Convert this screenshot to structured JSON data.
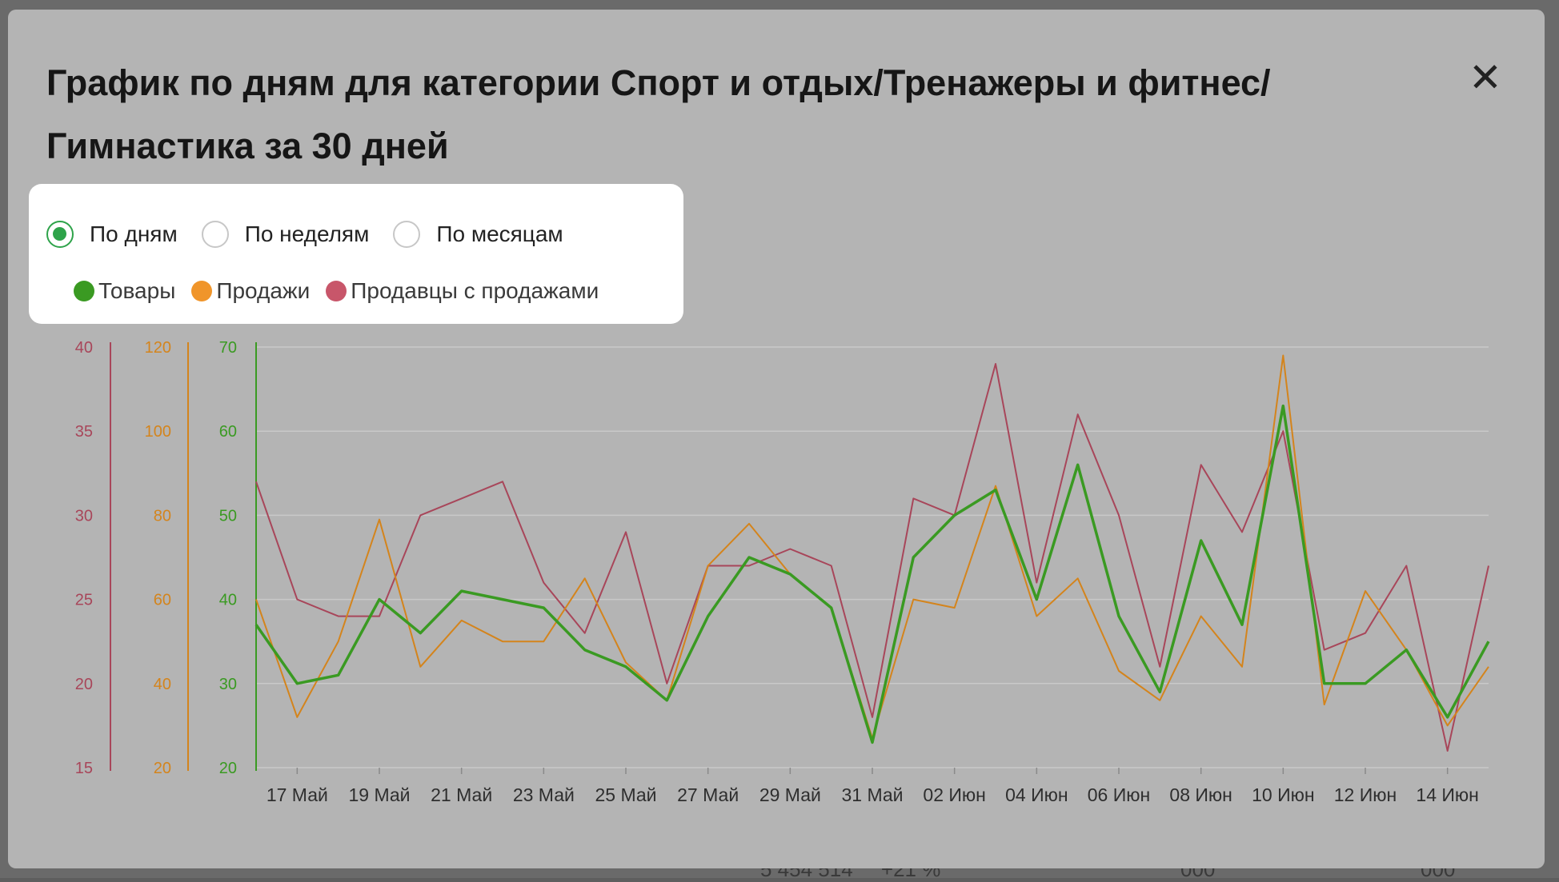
{
  "modal": {
    "title": "График по дням для категории Спорт и отдых/Тренажеры и фитнес/ Гимнастика за 30 дней",
    "close_icon": "close-icon"
  },
  "period_options": [
    {
      "label": "По дням",
      "selected": true
    },
    {
      "label": "По неделям",
      "selected": false
    },
    {
      "label": "По месяцам",
      "selected": false
    }
  ],
  "background": {
    "values": [
      "5 454 514",
      "+21 %",
      "000",
      "000"
    ]
  },
  "colors": {
    "products": "#3a9a22",
    "sales": "#d4841c",
    "sellers": "#a8465a"
  },
  "chart_data": {
    "type": "line",
    "x": [
      "16 Май",
      "17 Май",
      "18 Май",
      "19 Май",
      "20 Май",
      "21 Май",
      "22 Май",
      "23 Май",
      "24 Май",
      "25 Май",
      "26 Май",
      "27 Май",
      "28 Май",
      "29 Май",
      "30 Май",
      "31 Май",
      "01 Июн",
      "02 Июн",
      "03 Июн",
      "04 Июн",
      "05 Июн",
      "06 Июн",
      "07 Июн",
      "08 Июн",
      "09 Июн",
      "10 Июн",
      "11 Июн",
      "12 Июн",
      "13 Июн",
      "14 Июн",
      "15 Июн"
    ],
    "x_tick_labels": [
      "17 Май",
      "19 Май",
      "21 Май",
      "23 Май",
      "25 Май",
      "27 Май",
      "29 Май",
      "31 Май",
      "02 Июн",
      "04 Июн",
      "06 Июн",
      "08 Июн",
      "10 Июн",
      "12 Июн",
      "14 Июн"
    ],
    "axes": [
      {
        "series": "Продавцы с продажами",
        "min": 15,
        "max": 40,
        "ticks": [
          "15",
          "20",
          "25",
          "30",
          "35",
          "40"
        ]
      },
      {
        "series": "Продажи",
        "min": 20,
        "max": 120,
        "ticks": [
          "20",
          "40",
          "60",
          "80",
          "100",
          "120"
        ]
      },
      {
        "series": "Товары",
        "min": 20,
        "max": 70,
        "ticks": [
          "20",
          "30",
          "40",
          "50",
          "60",
          "70"
        ]
      }
    ],
    "grid": true,
    "series": [
      {
        "name": "Товары",
        "color": "#3a9a22",
        "axis": 2,
        "values": [
          37,
          30,
          31,
          40,
          36,
          41,
          40,
          39,
          34,
          32,
          28,
          38,
          45,
          43,
          39,
          23,
          45,
          50,
          53,
          40,
          56,
          38,
          29,
          47,
          37,
          63,
          30,
          30,
          34,
          26,
          35
        ]
      },
      {
        "name": "Продажи",
        "color": "#d4841c",
        "axis": 1,
        "values": [
          60,
          32,
          50,
          79,
          44,
          55,
          50,
          50,
          65,
          45,
          36,
          68,
          78,
          66,
          58,
          27,
          60,
          58,
          87,
          56,
          65,
          43,
          36,
          56,
          44,
          118,
          35,
          62,
          48,
          30,
          44
        ]
      },
      {
        "name": "Продавцы с продажами",
        "color": "#a8465a",
        "axis": 0,
        "values": [
          32,
          25,
          24,
          24,
          30,
          31,
          32,
          26,
          23,
          29,
          20,
          27,
          27,
          28,
          27,
          18,
          31,
          30,
          39,
          26,
          36,
          30,
          21,
          33,
          29,
          35,
          22,
          23,
          27,
          16,
          27
        ]
      }
    ]
  }
}
